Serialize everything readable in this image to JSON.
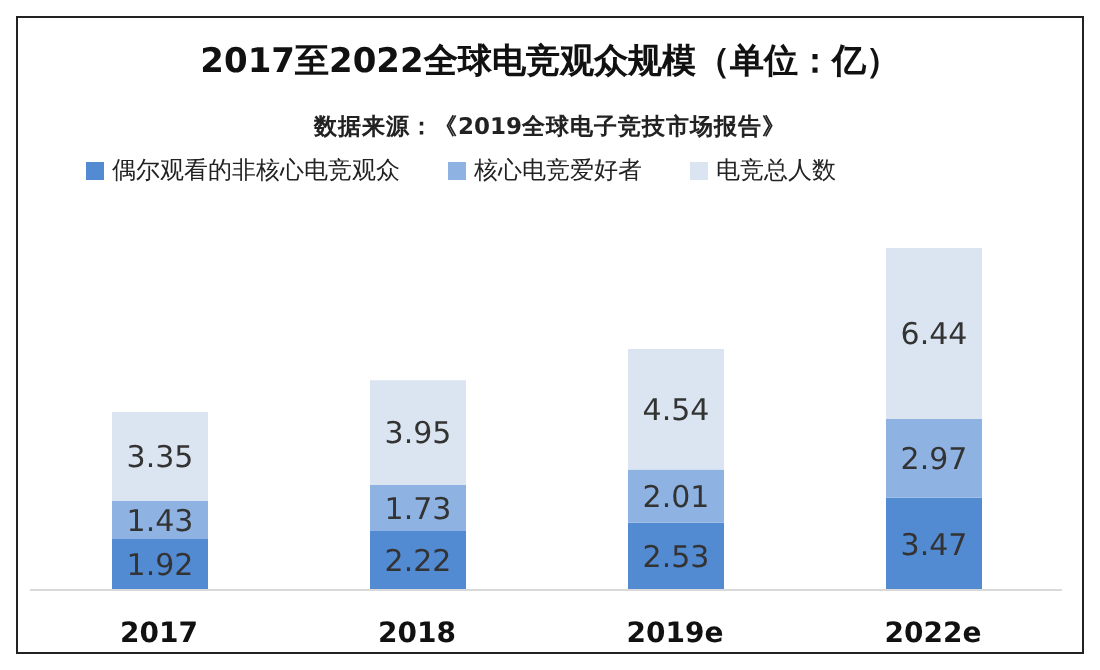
{
  "chart_data": {
    "type": "bar",
    "title": "2017至2022全球电竞观众规模（单位：亿）",
    "subtitle": "数据来源：《2019全球电子竞技市场报告》",
    "categories": [
      "2017",
      "2018",
      "2019e",
      "2022e"
    ],
    "stacked": true,
    "data_labels": true,
    "legend": "top left",
    "grid": false,
    "series": [
      {
        "name": "偶尔观看的非核心电竞观众",
        "color": "#538bd3",
        "values": [
          1.92,
          2.22,
          2.53,
          3.47
        ]
      },
      {
        "name": "核心电竞爱好者",
        "color": "#8eb3e3",
        "values": [
          1.43,
          1.73,
          2.01,
          2.97
        ]
      },
      {
        "name": "电竞总人数",
        "color": "#dbe5f1",
        "values": [
          3.35,
          3.95,
          4.54,
          6.44
        ]
      }
    ]
  }
}
